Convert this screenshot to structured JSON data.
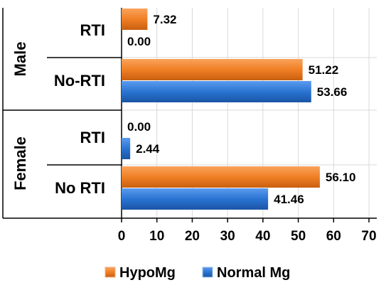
{
  "chart_data": {
    "type": "bar",
    "orientation": "horizontal",
    "title": "",
    "xlabel": "",
    "ylabel": "",
    "xlim": [
      0,
      70
    ],
    "xticks": [
      0,
      10,
      20,
      30,
      40,
      50,
      60,
      70
    ],
    "grid": "vertical gridlines",
    "legend_position": "bottom",
    "groups": [
      {
        "name": "Male",
        "categories": [
          "RTI",
          "No-RTI"
        ]
      },
      {
        "name": "Female",
        "categories": [
          "RTI",
          "No RTI"
        ]
      }
    ],
    "categories": [
      "Male RTI",
      "Male No-RTI",
      "Female RTI",
      "Female No RTI"
    ],
    "series": [
      {
        "name": "HypoMg",
        "color": "#f07f25",
        "values": [
          7.32,
          51.22,
          0.0,
          56.1
        ],
        "labels": [
          "7.32",
          "51.22",
          "0.00",
          "56.10"
        ]
      },
      {
        "name": "Normal Mg",
        "color": "#2a74d2",
        "values": [
          0.0,
          53.66,
          2.44,
          41.46
        ],
        "labels": [
          "0.00",
          "53.66",
          "2.44",
          "41.46"
        ]
      }
    ]
  }
}
